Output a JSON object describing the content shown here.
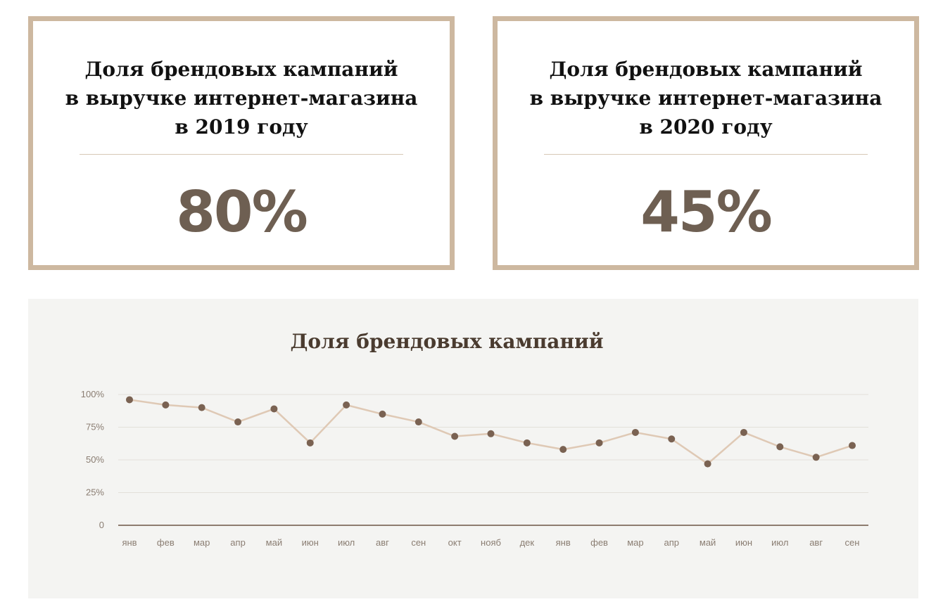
{
  "cards": [
    {
      "title_lines": [
        "Доля брендовых кампаний",
        "в выручке интернет-магазина",
        "в 2019 году"
      ],
      "value": "80%"
    },
    {
      "title_lines": [
        "Доля брендовых кампаний",
        "в выручке интернет-магазина",
        "в 2020 году"
      ],
      "value": "45%"
    }
  ],
  "colors": {
    "card_border": "#cdb8a0",
    "value_text": "#6e5f52",
    "line": "#dfc9b5",
    "marker": "#7a6252",
    "panel_bg": "#f4f4f2"
  },
  "chart_data": {
    "type": "line",
    "title": "Доля брендовых кампаний",
    "xlabel": "",
    "ylabel": "",
    "categories": [
      "янв",
      "фев",
      "мар",
      "апр",
      "май",
      "июн",
      "июл",
      "авг",
      "сен",
      "окт",
      "нояб",
      "дек",
      "янв",
      "фев",
      "мар",
      "апр",
      "май",
      "июн",
      "июл",
      "авг",
      "сен"
    ],
    "series": [
      {
        "values": [
          96,
          92,
          90,
          79,
          89,
          63,
          92,
          85,
          79,
          68,
          70,
          63,
          58,
          63,
          71,
          66,
          47,
          71,
          60,
          52,
          61
        ]
      }
    ],
    "ylim": [
      0,
      100
    ],
    "yticks": [
      0,
      25,
      50,
      75,
      100
    ],
    "ytick_labels": [
      "0",
      "25%",
      "50%",
      "75%",
      "100%"
    ],
    "grid": true,
    "legend": "none"
  }
}
